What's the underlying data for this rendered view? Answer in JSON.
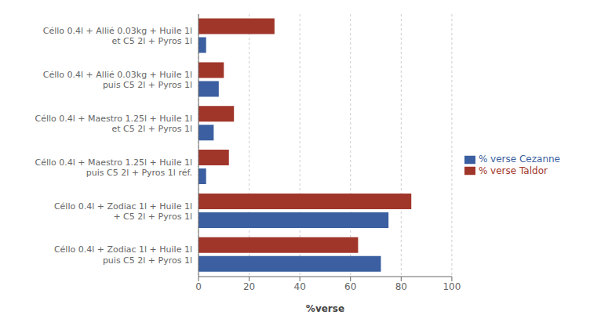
{
  "chart_data": {
    "type": "bar",
    "orientation": "horizontal",
    "xlabel": "%verse",
    "categories": [
      "Céllo 0.4l + Zodiac 1l + Huile 1l\npuis C5 2l + Pyros 1l",
      "Céllo 0.4l + Zodiac 1l + Huile 1l\n+ C5 2l + Pyros 1l",
      "Céllo 0.4l + Maestro 1.25l + Huile 1l\npuis C5 2l + Pyros 1l  réf.",
      "Céllo 0.4l + Maestro 1.25l + Huile 1l\net C5 2l + Pyros 1l",
      "Céllo 0.4l + Allié 0.03kg + Huile 1l\npuis C5 2l + Pyros 1l",
      "Céllo 0.4l + Allié 0.03kg + Huile 1l\net C5 2l + Pyros 1l"
    ],
    "series": [
      {
        "name": "% verse Taldor",
        "color": "#A0362A",
        "values": [
          63,
          84,
          12,
          14,
          10,
          30
        ]
      },
      {
        "name": "% verse Cezanne",
        "color": "#3B5FA0",
        "values": [
          72,
          75,
          3,
          6,
          8,
          3
        ]
      }
    ],
    "xlim": [
      0,
      100
    ],
    "xticks": [
      0,
      20,
      40,
      60,
      80,
      100
    ],
    "grid": true,
    "legend": "right"
  }
}
